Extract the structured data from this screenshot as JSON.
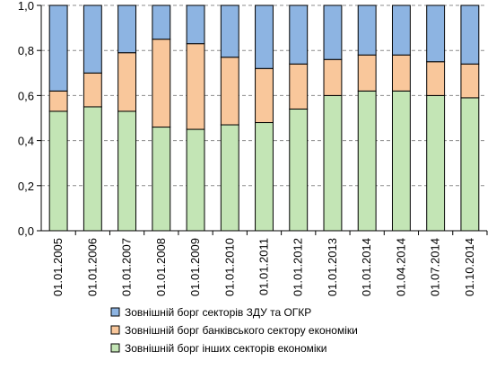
{
  "chart_data": {
    "type": "bar",
    "stacked": true,
    "title": "",
    "xlabel": "",
    "ylabel": "",
    "ylim": [
      0,
      1.0
    ],
    "yticks": [
      "0,0",
      "0,2",
      "0,4",
      "0,6",
      "0,8",
      "1,0"
    ],
    "ytick_values": [
      0,
      0.2,
      0.4,
      0.6,
      0.8,
      1.0
    ],
    "grid": true,
    "legend_position": "bottom",
    "categories": [
      "01.01.2005",
      "01.01.2006",
      "01.01.2007",
      "01.01.2008",
      "01.01.2009",
      "01.01.2010",
      "01.01.2011",
      "01.01.2012",
      "01.01.2013",
      "01.01.2014",
      "01.04.2014",
      "01.07.2014",
      "01.10.2014"
    ],
    "series": [
      {
        "name": "Зовнішній борг інших секторів економіки",
        "color": "#C3E5B5",
        "values": [
          0.53,
          0.55,
          0.53,
          0.46,
          0.45,
          0.47,
          0.48,
          0.54,
          0.6,
          0.62,
          0.62,
          0.6,
          0.59
        ]
      },
      {
        "name": "Зовнішній борг банківського сектору економіки",
        "color": "#F9C79B",
        "values": [
          0.09,
          0.15,
          0.26,
          0.39,
          0.38,
          0.3,
          0.24,
          0.2,
          0.16,
          0.16,
          0.16,
          0.15,
          0.15
        ]
      },
      {
        "name": "Зовнішній борг секторів ЗДУ та ОГКР",
        "color": "#8DB4E2",
        "values": [
          0.38,
          0.3,
          0.21,
          0.15,
          0.17,
          0.23,
          0.28,
          0.26,
          0.24,
          0.22,
          0.22,
          0.25,
          0.26
        ]
      }
    ],
    "legend_order": [
      2,
      1,
      0
    ]
  }
}
